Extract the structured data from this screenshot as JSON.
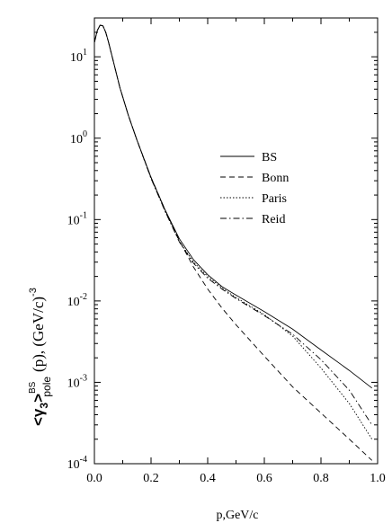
{
  "chart_data": {
    "type": "line",
    "xlabel": "p,GeV/c",
    "ylabel": {
      "base": "<γ",
      "sub3": "3",
      "close": ">",
      "sup": "BS",
      "sub": "pole",
      "arg": "(p),  (GeV/c)",
      "exp": "-3"
    },
    "xlim": [
      0.0,
      1.0
    ],
    "ylim": [
      0.0001,
      30
    ],
    "yscale": "log",
    "grid": false,
    "legend_position": "upper-right",
    "x_ticks": [
      "0.0",
      "0.2",
      "0.4",
      "0.6",
      "0.8",
      "1.0"
    ],
    "y_ticks": [
      {
        "value": 10,
        "base": "10",
        "exp": "1"
      },
      {
        "value": 1,
        "base": "10",
        "exp": "0"
      },
      {
        "value": 0.1,
        "base": "10",
        "exp": "-1"
      },
      {
        "value": 0.01,
        "base": "10",
        "exp": "-2"
      },
      {
        "value": 0.001,
        "base": "10",
        "exp": "-3"
      },
      {
        "value": 0.0001,
        "base": "10",
        "exp": "-4"
      }
    ],
    "series": [
      {
        "name": "BS",
        "style": "solid",
        "x": [
          0.0,
          0.01,
          0.02,
          0.03,
          0.04,
          0.05,
          0.07,
          0.09,
          0.12,
          0.15,
          0.2,
          0.25,
          0.3,
          0.35,
          0.4,
          0.45,
          0.5,
          0.6,
          0.7,
          0.8,
          0.9,
          0.98
        ],
        "y": [
          15,
          21,
          24.5,
          24,
          20,
          15,
          8,
          4.2,
          1.9,
          0.95,
          0.33,
          0.13,
          0.058,
          0.032,
          0.021,
          0.015,
          0.0118,
          0.0074,
          0.0045,
          0.0025,
          0.0014,
          0.00085
        ]
      },
      {
        "name": "Bonn",
        "style": "dashed",
        "x": [
          0.0,
          0.01,
          0.02,
          0.03,
          0.04,
          0.05,
          0.07,
          0.09,
          0.12,
          0.15,
          0.2,
          0.25,
          0.3,
          0.35,
          0.4,
          0.45,
          0.5,
          0.6,
          0.7,
          0.8,
          0.9,
          0.98
        ],
        "y": [
          15,
          21,
          24.5,
          24,
          20,
          15,
          8,
          4.2,
          1.9,
          0.95,
          0.33,
          0.13,
          0.055,
          0.026,
          0.014,
          0.0082,
          0.0051,
          0.0021,
          0.00088,
          0.00042,
          0.0002,
          0.00011
        ]
      },
      {
        "name": "Paris",
        "style": "dotted",
        "x": [
          0.0,
          0.01,
          0.02,
          0.03,
          0.04,
          0.05,
          0.07,
          0.09,
          0.12,
          0.15,
          0.2,
          0.25,
          0.3,
          0.35,
          0.4,
          0.45,
          0.5,
          0.6,
          0.7,
          0.8,
          0.9,
          0.98
        ],
        "y": [
          15,
          21,
          24.5,
          24,
          20,
          15,
          8,
          4.2,
          1.9,
          0.95,
          0.32,
          0.125,
          0.054,
          0.03,
          0.02,
          0.0145,
          0.011,
          0.0068,
          0.0037,
          0.0015,
          0.00055,
          0.0002
        ]
      },
      {
        "name": "Reid",
        "style": "dashdot",
        "x": [
          0.0,
          0.01,
          0.02,
          0.03,
          0.04,
          0.05,
          0.07,
          0.09,
          0.12,
          0.15,
          0.2,
          0.25,
          0.3,
          0.35,
          0.4,
          0.45,
          0.5,
          0.6,
          0.7,
          0.8,
          0.9,
          0.98
        ],
        "y": [
          15,
          21,
          24.5,
          24,
          20,
          15,
          8,
          4.2,
          1.9,
          0.95,
          0.32,
          0.125,
          0.053,
          0.029,
          0.019,
          0.014,
          0.0107,
          0.0066,
          0.0039,
          0.0019,
          0.0008,
          0.0003
        ]
      }
    ]
  }
}
